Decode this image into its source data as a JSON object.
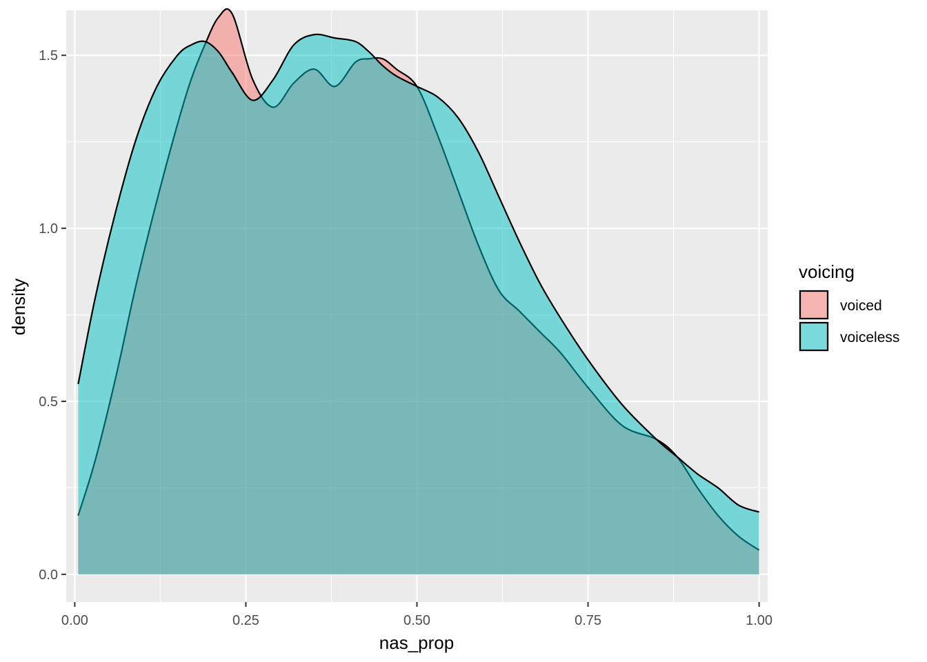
{
  "chart_data": {
    "type": "area",
    "subtype": "density",
    "xlabel": "nas_prop",
    "ylabel": "density",
    "xlim": [
      -0.0125,
      1.0125
    ],
    "ylim": [
      -0.08,
      1.63
    ],
    "x_ticks": [
      0.0,
      0.25,
      0.5,
      0.75,
      1.0
    ],
    "x_tick_labels": [
      "0.00",
      "0.25",
      "0.50",
      "0.75",
      "1.00"
    ],
    "y_ticks": [
      0.0,
      0.5,
      1.0,
      1.5
    ],
    "y_tick_labels": [
      "0.0",
      "0.5",
      "1.0",
      "1.5"
    ],
    "grid": true,
    "legend": {
      "title": "voicing",
      "position": "right"
    },
    "series": [
      {
        "name": "voiced",
        "color": "#F8766D",
        "x": [
          0.005,
          0.03,
          0.06,
          0.09,
          0.12,
          0.15,
          0.17,
          0.19,
          0.21,
          0.23,
          0.26,
          0.29,
          0.32,
          0.35,
          0.38,
          0.41,
          0.43,
          0.45,
          0.47,
          0.5,
          0.53,
          0.56,
          0.59,
          0.62,
          0.65,
          0.68,
          0.71,
          0.75,
          0.8,
          0.85,
          0.88,
          0.91,
          0.94,
          0.97,
          1.0
        ],
        "y": [
          0.17,
          0.33,
          0.57,
          0.84,
          1.08,
          1.3,
          1.43,
          1.53,
          1.61,
          1.62,
          1.43,
          1.35,
          1.42,
          1.46,
          1.41,
          1.48,
          1.49,
          1.49,
          1.46,
          1.41,
          1.27,
          1.11,
          0.95,
          0.82,
          0.76,
          0.7,
          0.64,
          0.54,
          0.43,
          0.39,
          0.34,
          0.25,
          0.17,
          0.11,
          0.07
        ]
      },
      {
        "name": "voiceless",
        "color": "#00BFC4",
        "x": [
          0.005,
          0.03,
          0.06,
          0.09,
          0.12,
          0.15,
          0.17,
          0.19,
          0.21,
          0.23,
          0.26,
          0.29,
          0.32,
          0.35,
          0.38,
          0.41,
          0.43,
          0.45,
          0.47,
          0.5,
          0.53,
          0.56,
          0.59,
          0.62,
          0.65,
          0.68,
          0.71,
          0.75,
          0.8,
          0.85,
          0.88,
          0.91,
          0.94,
          0.97,
          1.0
        ],
        "y": [
          0.55,
          0.8,
          1.05,
          1.26,
          1.41,
          1.5,
          1.53,
          1.54,
          1.51,
          1.45,
          1.37,
          1.43,
          1.53,
          1.56,
          1.55,
          1.54,
          1.51,
          1.47,
          1.44,
          1.41,
          1.38,
          1.32,
          1.22,
          1.09,
          0.96,
          0.84,
          0.74,
          0.62,
          0.49,
          0.39,
          0.34,
          0.29,
          0.25,
          0.2,
          0.18
        ]
      }
    ]
  }
}
